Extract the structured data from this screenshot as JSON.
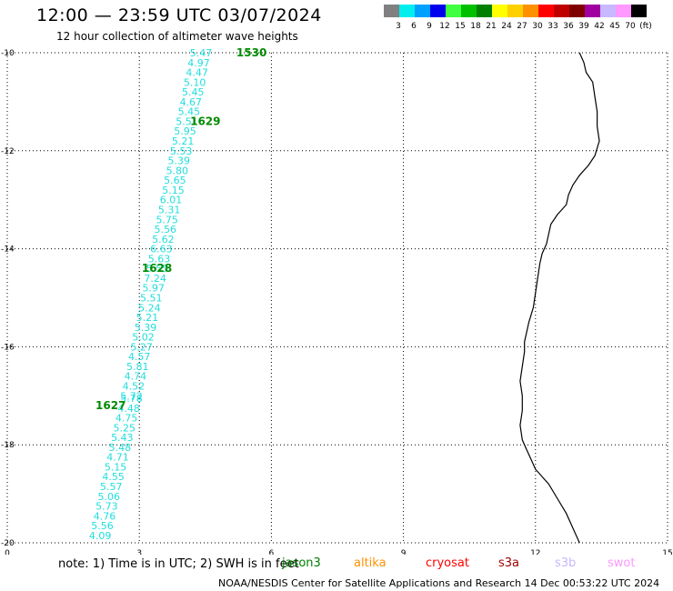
{
  "header": {
    "title": "12:00 — 23:59 UTC 03/07/2024",
    "subtitle": "12 hour collection of altimeter wave heights"
  },
  "legend": {
    "colors": [
      "#808080",
      "#00eeee",
      "#00a0ff",
      "#0000ee",
      "#40ff40",
      "#00c000",
      "#008000",
      "#ffff00",
      "#ffd000",
      "#ff9000",
      "#ff0000",
      "#c00000",
      "#800000",
      "#a000a0",
      "#c8b8ff",
      "#ff98ff",
      "#000000"
    ],
    "labels": [
      "3",
      "6",
      "9",
      "12",
      "15",
      "18",
      "21",
      "24",
      "27",
      "30",
      "33",
      "36",
      "39",
      "42",
      "45",
      "70",
      "(ft)"
    ]
  },
  "chart_data": {
    "type": "scatter",
    "x_axis": {
      "range": [
        0,
        15
      ],
      "ticks": [
        "0",
        "3",
        "6",
        "9",
        "12",
        "15"
      ]
    },
    "y_axis": {
      "range": [
        -20,
        -10
      ],
      "ticks": [
        "-10",
        "-12",
        "-14",
        "-16",
        "-18",
        "-20"
      ]
    },
    "grid": true,
    "points": [
      {
        "x": 4.4,
        "y": -10.0,
        "label": "5.47"
      },
      {
        "x": 4.35,
        "y": -10.2,
        "label": "4.97"
      },
      {
        "x": 4.31,
        "y": -10.4,
        "label": "4.47"
      },
      {
        "x": 4.26,
        "y": -10.6,
        "label": "5.10"
      },
      {
        "x": 4.22,
        "y": -10.8,
        "label": "5.45"
      },
      {
        "x": 4.17,
        "y": -11.0,
        "label": "4.67"
      },
      {
        "x": 4.13,
        "y": -11.2,
        "label": "5.45"
      },
      {
        "x": 4.08,
        "y": -11.4,
        "label": "5.51"
      },
      {
        "x": 4.04,
        "y": -11.6,
        "label": "5.95"
      },
      {
        "x": 3.99,
        "y": -11.8,
        "label": "5.21"
      },
      {
        "x": 3.95,
        "y": -12.0,
        "label": "5.53"
      },
      {
        "x": 3.9,
        "y": -12.2,
        "label": "5.39"
      },
      {
        "x": 3.86,
        "y": -12.4,
        "label": "5.80"
      },
      {
        "x": 3.81,
        "y": -12.6,
        "label": "5.65"
      },
      {
        "x": 3.77,
        "y": -12.8,
        "label": "5.15"
      },
      {
        "x": 3.72,
        "y": -13.0,
        "label": "6.01"
      },
      {
        "x": 3.68,
        "y": -13.2,
        "label": "5.31"
      },
      {
        "x": 3.63,
        "y": -13.4,
        "label": "5.75"
      },
      {
        "x": 3.59,
        "y": -13.6,
        "label": "5.56"
      },
      {
        "x": 3.54,
        "y": -13.8,
        "label": "5.62"
      },
      {
        "x": 3.5,
        "y": -14.0,
        "label": "6.63"
      },
      {
        "x": 3.45,
        "y": -14.2,
        "label": "5.63"
      },
      {
        "x": 3.41,
        "y": -14.4,
        "label": "5.55"
      },
      {
        "x": 3.36,
        "y": -14.6,
        "label": "7.24"
      },
      {
        "x": 3.32,
        "y": -14.8,
        "label": "5.97"
      },
      {
        "x": 3.27,
        "y": -15.0,
        "label": "5.51"
      },
      {
        "x": 3.23,
        "y": -15.2,
        "label": "5.24"
      },
      {
        "x": 3.18,
        "y": -15.4,
        "label": "5.21"
      },
      {
        "x": 3.14,
        "y": -15.6,
        "label": "5.39"
      },
      {
        "x": 3.09,
        "y": -15.8,
        "label": "5.02"
      },
      {
        "x": 3.05,
        "y": -16.0,
        "label": "5.27"
      },
      {
        "x": 3.0,
        "y": -16.2,
        "label": "4.57"
      },
      {
        "x": 2.96,
        "y": -16.4,
        "label": "5.81"
      },
      {
        "x": 2.91,
        "y": -16.6,
        "label": "4.74"
      },
      {
        "x": 2.87,
        "y": -16.8,
        "label": "4.52"
      },
      {
        "x": 2.82,
        "y": -17.0,
        "label": "5.72"
      },
      {
        "x": 2.82,
        "y": -17.05,
        "label": "5.78"
      },
      {
        "x": 2.76,
        "y": -17.25,
        "label": "4.48"
      },
      {
        "x": 2.71,
        "y": -17.45,
        "label": "4.75"
      },
      {
        "x": 2.66,
        "y": -17.65,
        "label": "5.25"
      },
      {
        "x": 2.61,
        "y": -17.85,
        "label": "5.43"
      },
      {
        "x": 2.56,
        "y": -18.05,
        "label": "5.48"
      },
      {
        "x": 2.51,
        "y": -18.25,
        "label": "4.71"
      },
      {
        "x": 2.46,
        "y": -18.45,
        "label": "5.15"
      },
      {
        "x": 2.41,
        "y": -18.65,
        "label": "4.55"
      },
      {
        "x": 2.36,
        "y": -18.85,
        "label": "5.57"
      },
      {
        "x": 2.31,
        "y": -19.05,
        "label": "5.06"
      },
      {
        "x": 2.26,
        "y": -19.25,
        "label": "5.73"
      },
      {
        "x": 2.21,
        "y": -19.45,
        "label": "4.76"
      },
      {
        "x": 2.16,
        "y": -19.65,
        "label": "5.56"
      },
      {
        "x": 2.11,
        "y": -19.85,
        "label": "4.09"
      }
    ],
    "pass_labels": [
      {
        "x": 5.55,
        "y": -10.0,
        "label": "1530"
      },
      {
        "x": 4.5,
        "y": -11.4,
        "label": "1629"
      },
      {
        "x": 3.4,
        "y": -14.4,
        "label": "1628"
      },
      {
        "x": 2.35,
        "y": -17.2,
        "label": "1627"
      }
    ],
    "coastline": [
      [
        13.0,
        -10.0
      ],
      [
        13.1,
        -10.2
      ],
      [
        13.15,
        -10.4
      ],
      [
        13.3,
        -10.6
      ],
      [
        13.35,
        -10.9
      ],
      [
        13.4,
        -11.2
      ],
      [
        13.4,
        -11.5
      ],
      [
        13.45,
        -11.8
      ],
      [
        13.35,
        -12.1
      ],
      [
        13.2,
        -12.3
      ],
      [
        13.0,
        -12.5
      ],
      [
        12.85,
        -12.7
      ],
      [
        12.75,
        -12.9
      ],
      [
        12.7,
        -13.1
      ],
      [
        12.5,
        -13.3
      ],
      [
        12.35,
        -13.5
      ],
      [
        12.3,
        -13.7
      ],
      [
        12.25,
        -13.9
      ],
      [
        12.15,
        -14.1
      ],
      [
        12.1,
        -14.3
      ],
      [
        12.05,
        -14.6
      ],
      [
        12.0,
        -14.9
      ],
      [
        11.95,
        -15.2
      ],
      [
        11.85,
        -15.5
      ],
      [
        11.8,
        -15.7
      ],
      [
        11.75,
        -15.9
      ],
      [
        11.75,
        -16.1
      ],
      [
        11.7,
        -16.4
      ],
      [
        11.65,
        -16.7
      ],
      [
        11.7,
        -17.0
      ],
      [
        11.7,
        -17.3
      ],
      [
        11.65,
        -17.6
      ],
      [
        11.7,
        -17.9
      ],
      [
        11.8,
        -18.1
      ],
      [
        11.9,
        -18.3
      ],
      [
        12.0,
        -18.5
      ],
      [
        12.3,
        -18.8
      ],
      [
        12.5,
        -19.1
      ],
      [
        12.7,
        -19.4
      ],
      [
        12.85,
        -19.7
      ],
      [
        13.0,
        -20.0
      ]
    ]
  },
  "footer": {
    "note": "note: 1) Time is in UTC; 2) SWH is in feet",
    "satellites": [
      {
        "name": "jason3",
        "color": "#008000"
      },
      {
        "name": "altika",
        "color": "#ff9000"
      },
      {
        "name": "cryosat",
        "color": "#ff0000"
      },
      {
        "name": "s3a",
        "color": "#a00000"
      },
      {
        "name": "s3b",
        "color": "#c8b8ff"
      },
      {
        "name": "swot",
        "color": "#ff98ff"
      }
    ],
    "credit": "NOAA/NESDIS Center for Satellite Applications and Research    14 Dec 00:53:22 UTC 2024"
  }
}
